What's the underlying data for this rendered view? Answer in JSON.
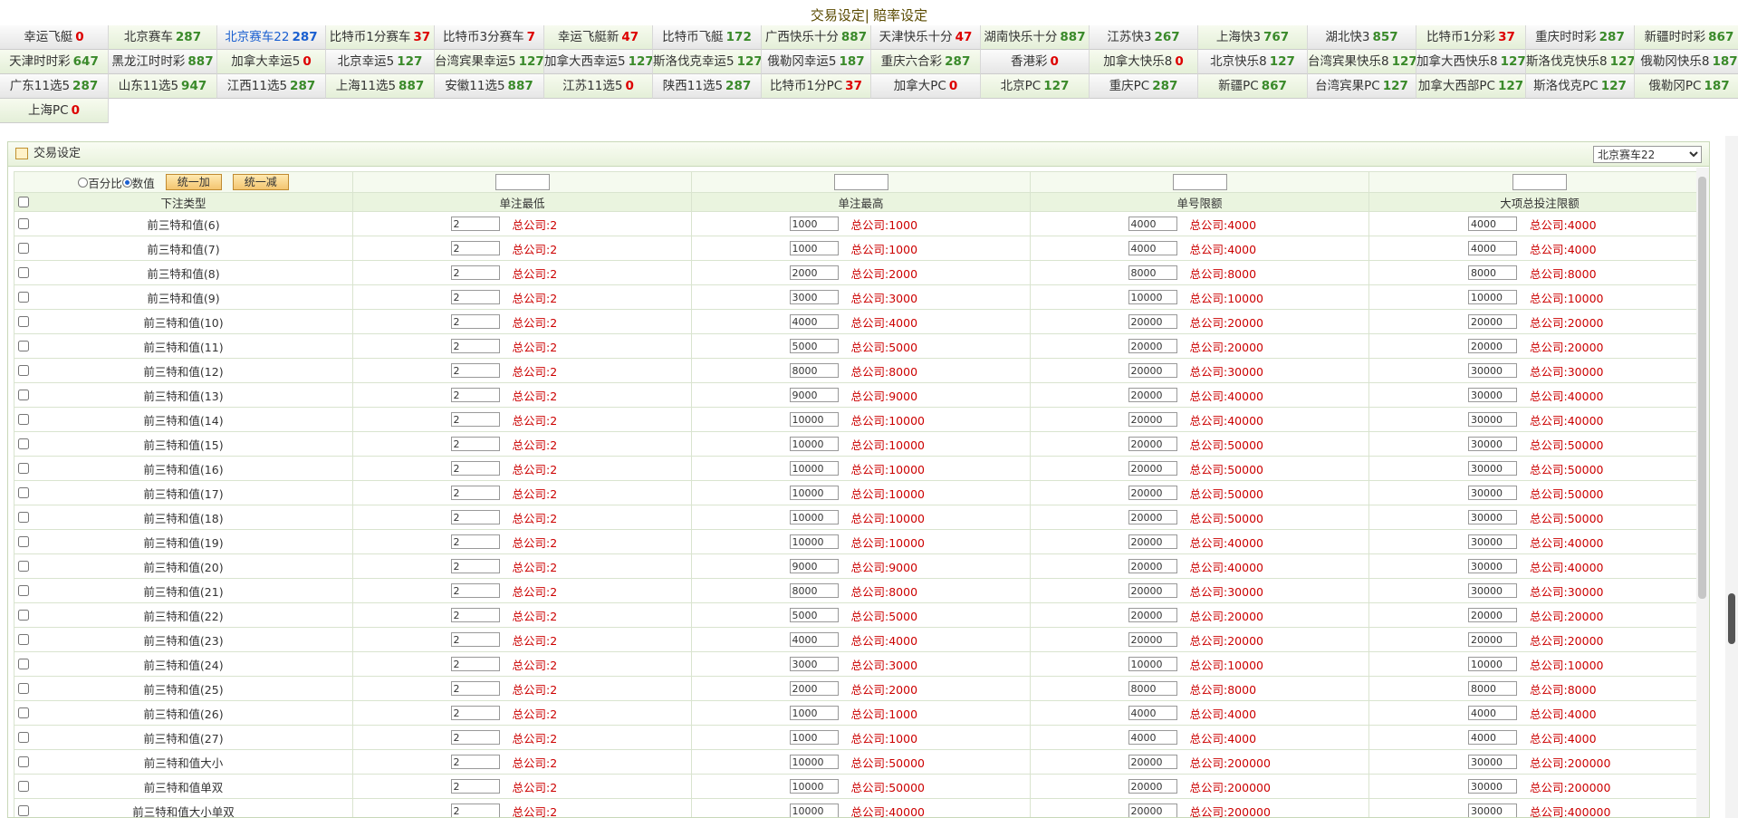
{
  "nav": {
    "trade_label": "交易设定",
    "separator": "|",
    "odds_label": "賠率设定"
  },
  "lotteries": [
    [
      {
        "name": "幸运飞艇",
        "count": "0",
        "color": "red"
      },
      {
        "name": "北京赛车",
        "count": "287",
        "color": "green"
      },
      {
        "name": "北京赛车22",
        "count": "287",
        "color": "green",
        "active": true
      },
      {
        "name": "比特币1分赛车",
        "count": "37",
        "color": "red"
      },
      {
        "name": "比特币3分赛车",
        "count": "7",
        "color": "red"
      },
      {
        "name": "幸运飞艇新",
        "count": "47",
        "color": "red"
      },
      {
        "name": "比特币飞艇",
        "count": "172",
        "color": "green"
      },
      {
        "name": "广西快乐十分",
        "count": "887",
        "color": "green"
      },
      {
        "name": "天津快乐十分",
        "count": "47",
        "color": "red"
      },
      {
        "name": "湖南快乐十分",
        "count": "887",
        "color": "green"
      },
      {
        "name": "江苏快3",
        "count": "267",
        "color": "green"
      },
      {
        "name": "上海快3",
        "count": "767",
        "color": "green"
      },
      {
        "name": "湖北快3",
        "count": "857",
        "color": "green"
      },
      {
        "name": "比特币1分彩",
        "count": "37",
        "color": "red"
      },
      {
        "name": "重庆时时彩",
        "count": "287",
        "color": "green"
      },
      {
        "name": "新疆时时彩",
        "count": "867",
        "color": "green"
      }
    ],
    [
      {
        "name": "天津时时彩",
        "count": "647",
        "color": "green"
      },
      {
        "name": "黑龙江时时彩",
        "count": "887",
        "color": "green"
      },
      {
        "name": "加拿大幸运5",
        "count": "0",
        "color": "red"
      },
      {
        "name": "北京幸运5",
        "count": "127",
        "color": "green"
      },
      {
        "name": "台湾宾果幸运5",
        "count": "127",
        "color": "green"
      },
      {
        "name": "加拿大西幸运5",
        "count": "127",
        "color": "green"
      },
      {
        "name": "斯洛伐克幸运5",
        "count": "127",
        "color": "green"
      },
      {
        "name": "俄勒冈幸运5",
        "count": "187",
        "color": "green"
      },
      {
        "name": "重庆六合彩",
        "count": "287",
        "color": "green"
      },
      {
        "name": "香港彩",
        "count": "0",
        "color": "red"
      },
      {
        "name": "加拿大快乐8",
        "count": "0",
        "color": "red"
      },
      {
        "name": "北京快乐8",
        "count": "127",
        "color": "green"
      },
      {
        "name": "台湾宾果快乐8",
        "count": "127",
        "color": "green"
      },
      {
        "name": "加拿大西快乐8",
        "count": "127",
        "color": "green"
      },
      {
        "name": "斯洛伐克快乐8",
        "count": "127",
        "color": "green"
      },
      {
        "name": "俄勒冈快乐8",
        "count": "187",
        "color": "green"
      }
    ],
    [
      {
        "name": "广东11选5",
        "count": "287",
        "color": "green"
      },
      {
        "name": "山东11选5",
        "count": "947",
        "color": "green"
      },
      {
        "name": "江西11选5",
        "count": "287",
        "color": "green"
      },
      {
        "name": "上海11选5",
        "count": "887",
        "color": "green"
      },
      {
        "name": "安徽11选5",
        "count": "887",
        "color": "green"
      },
      {
        "name": "江苏11选5",
        "count": "0",
        "color": "red"
      },
      {
        "name": "陕西11选5",
        "count": "287",
        "color": "green"
      },
      {
        "name": "比特币1分PC",
        "count": "37",
        "color": "red"
      },
      {
        "name": "加拿大PC",
        "count": "0",
        "color": "red"
      },
      {
        "name": "北京PC",
        "count": "127",
        "color": "green"
      },
      {
        "name": "重庆PC",
        "count": "287",
        "color": "green"
      },
      {
        "name": "新疆PC",
        "count": "867",
        "color": "green"
      },
      {
        "name": "台湾宾果PC",
        "count": "127",
        "color": "green"
      },
      {
        "name": "加拿大西部PC",
        "count": "127",
        "color": "green"
      },
      {
        "name": "斯洛伐克PC",
        "count": "127",
        "color": "green"
      },
      {
        "name": "俄勒冈PC",
        "count": "187",
        "color": "green"
      }
    ],
    [
      {
        "name": "上海PC",
        "count": "0",
        "color": "red"
      }
    ]
  ],
  "panel": {
    "title": "交易设定",
    "selected_lottery": "北京赛车22"
  },
  "controls": {
    "percent_label": "百分比",
    "value_label": "数值",
    "add_all": "统一加",
    "sub_all": "统一减"
  },
  "columns": [
    "下注类型",
    "单注最低",
    "单注最高",
    "单号限额",
    "大项总投注限额"
  ],
  "limit_prefix": "总公司:",
  "rows": [
    {
      "name": "前三特和值(6)",
      "min": "2",
      "min_total": "2",
      "max": "1000",
      "max_total": "1000",
      "single": "4000",
      "single_total": "4000",
      "big": "4000",
      "big_total": "4000"
    },
    {
      "name": "前三特和值(7)",
      "min": "2",
      "min_total": "2",
      "max": "1000",
      "max_total": "1000",
      "single": "4000",
      "single_total": "4000",
      "big": "4000",
      "big_total": "4000"
    },
    {
      "name": "前三特和值(8)",
      "min": "2",
      "min_total": "2",
      "max": "2000",
      "max_total": "2000",
      "single": "8000",
      "single_total": "8000",
      "big": "8000",
      "big_total": "8000"
    },
    {
      "name": "前三特和值(9)",
      "min": "2",
      "min_total": "2",
      "max": "3000",
      "max_total": "3000",
      "single": "10000",
      "single_total": "10000",
      "big": "10000",
      "big_total": "10000"
    },
    {
      "name": "前三特和值(10)",
      "min": "2",
      "min_total": "2",
      "max": "4000",
      "max_total": "4000",
      "single": "20000",
      "single_total": "20000",
      "big": "20000",
      "big_total": "20000"
    },
    {
      "name": "前三特和值(11)",
      "min": "2",
      "min_total": "2",
      "max": "5000",
      "max_total": "5000",
      "single": "20000",
      "single_total": "20000",
      "big": "20000",
      "big_total": "20000"
    },
    {
      "name": "前三特和值(12)",
      "min": "2",
      "min_total": "2",
      "max": "8000",
      "max_total": "8000",
      "single": "20000",
      "single_total": "30000",
      "big": "30000",
      "big_total": "30000"
    },
    {
      "name": "前三特和值(13)",
      "min": "2",
      "min_total": "2",
      "max": "9000",
      "max_total": "9000",
      "single": "20000",
      "single_total": "40000",
      "big": "30000",
      "big_total": "40000"
    },
    {
      "name": "前三特和值(14)",
      "min": "2",
      "min_total": "2",
      "max": "10000",
      "max_total": "10000",
      "single": "20000",
      "single_total": "40000",
      "big": "30000",
      "big_total": "40000"
    },
    {
      "name": "前三特和值(15)",
      "min": "2",
      "min_total": "2",
      "max": "10000",
      "max_total": "10000",
      "single": "20000",
      "single_total": "50000",
      "big": "30000",
      "big_total": "50000"
    },
    {
      "name": "前三特和值(16)",
      "min": "2",
      "min_total": "2",
      "max": "10000",
      "max_total": "10000",
      "single": "20000",
      "single_total": "50000",
      "big": "30000",
      "big_total": "50000"
    },
    {
      "name": "前三特和值(17)",
      "min": "2",
      "min_total": "2",
      "max": "10000",
      "max_total": "10000",
      "single": "20000",
      "single_total": "50000",
      "big": "30000",
      "big_total": "50000"
    },
    {
      "name": "前三特和值(18)",
      "min": "2",
      "min_total": "2",
      "max": "10000",
      "max_total": "10000",
      "single": "20000",
      "single_total": "50000",
      "big": "30000",
      "big_total": "50000"
    },
    {
      "name": "前三特和值(19)",
      "min": "2",
      "min_total": "2",
      "max": "10000",
      "max_total": "10000",
      "single": "20000",
      "single_total": "40000",
      "big": "30000",
      "big_total": "40000"
    },
    {
      "name": "前三特和值(20)",
      "min": "2",
      "min_total": "2",
      "max": "9000",
      "max_total": "9000",
      "single": "20000",
      "single_total": "40000",
      "big": "30000",
      "big_total": "40000"
    },
    {
      "name": "前三特和值(21)",
      "min": "2",
      "min_total": "2",
      "max": "8000",
      "max_total": "8000",
      "single": "20000",
      "single_total": "30000",
      "big": "30000",
      "big_total": "30000"
    },
    {
      "name": "前三特和值(22)",
      "min": "2",
      "min_total": "2",
      "max": "5000",
      "max_total": "5000",
      "single": "20000",
      "single_total": "20000",
      "big": "20000",
      "big_total": "20000"
    },
    {
      "name": "前三特和值(23)",
      "min": "2",
      "min_total": "2",
      "max": "4000",
      "max_total": "4000",
      "single": "20000",
      "single_total": "20000",
      "big": "20000",
      "big_total": "20000"
    },
    {
      "name": "前三特和值(24)",
      "min": "2",
      "min_total": "2",
      "max": "3000",
      "max_total": "3000",
      "single": "10000",
      "single_total": "10000",
      "big": "10000",
      "big_total": "10000"
    },
    {
      "name": "前三特和值(25)",
      "min": "2",
      "min_total": "2",
      "max": "2000",
      "max_total": "2000",
      "single": "8000",
      "single_total": "8000",
      "big": "8000",
      "big_total": "8000"
    },
    {
      "name": "前三特和值(26)",
      "min": "2",
      "min_total": "2",
      "max": "1000",
      "max_total": "1000",
      "single": "4000",
      "single_total": "4000",
      "big": "4000",
      "big_total": "4000"
    },
    {
      "name": "前三特和值(27)",
      "min": "2",
      "min_total": "2",
      "max": "1000",
      "max_total": "1000",
      "single": "4000",
      "single_total": "4000",
      "big": "4000",
      "big_total": "4000"
    },
    {
      "name": "前三特和值大小",
      "min": "2",
      "min_total": "2",
      "max": "10000",
      "max_total": "50000",
      "single": "20000",
      "single_total": "200000",
      "big": "30000",
      "big_total": "200000"
    },
    {
      "name": "前三特和值单双",
      "min": "2",
      "min_total": "2",
      "max": "10000",
      "max_total": "50000",
      "single": "20000",
      "single_total": "200000",
      "big": "30000",
      "big_total": "200000"
    },
    {
      "name": "前三特和值大小单双",
      "min": "2",
      "min_total": "2",
      "max": "10000",
      "max_total": "40000",
      "single": "20000",
      "single_total": "200000",
      "big": "30000",
      "big_total": "400000"
    }
  ]
}
